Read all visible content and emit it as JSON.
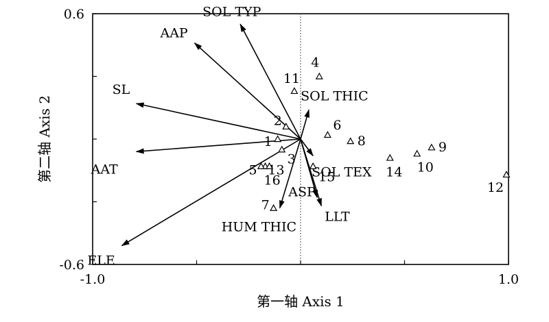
{
  "chart_data": {
    "type": "scatter",
    "subtype": "ordination-biplot",
    "title": "",
    "xlabel": "第一轴 Axis 1",
    "ylabel": "第二轴 Axis 2",
    "xlim": [
      -1.0,
      1.0
    ],
    "ylim": [
      -0.6,
      0.6
    ],
    "x_ticks": [
      -1.0,
      1.0
    ],
    "x_tick_labels": [
      "-1.0",
      "1.0"
    ],
    "y_ticks": [
      -0.6,
      0.6
    ],
    "y_tick_labels": [
      "-0.6",
      "0.6"
    ],
    "grid": false,
    "reference_line": {
      "axis": "x",
      "value": 0
    },
    "origin": [
      0.0,
      0.0
    ],
    "arrows": [
      {
        "label": "SOL TYP",
        "x": -0.29,
        "y": 0.55
      },
      {
        "label": "AAP",
        "x": -0.51,
        "y": 0.46
      },
      {
        "label": "SL",
        "x": -0.79,
        "y": 0.17
      },
      {
        "label": "AAT",
        "x": -0.79,
        "y": -0.06
      },
      {
        "label": "ELE",
        "x": -0.86,
        "y": -0.51
      },
      {
        "label": "SOL THIC",
        "x": 0.04,
        "y": 0.14
      },
      {
        "label": "HUM THIC",
        "x": -0.1,
        "y": -0.33
      },
      {
        "label": "ASP",
        "x": 0.08,
        "y": -0.28
      },
      {
        "label": "LLT",
        "x": 0.1,
        "y": -0.32
      },
      {
        "label": "SOL TEX",
        "x": 0.06,
        "y": -0.08
      }
    ],
    "points": [
      {
        "label": "1",
        "x": -0.11,
        "y": 0.0
      },
      {
        "label": "2",
        "x": -0.07,
        "y": 0.06
      },
      {
        "label": "3",
        "x": -0.09,
        "y": -0.05
      },
      {
        "label": "4",
        "x": 0.09,
        "y": 0.3
      },
      {
        "label": "5",
        "x": -0.17,
        "y": -0.13
      },
      {
        "label": "6",
        "x": 0.13,
        "y": 0.02
      },
      {
        "label": "7",
        "x": -0.13,
        "y": -0.33
      },
      {
        "label": "8",
        "x": 0.24,
        "y": -0.01
      },
      {
        "label": "9",
        "x": 0.63,
        "y": -0.04
      },
      {
        "label": "10",
        "x": 0.56,
        "y": -0.07
      },
      {
        "label": "11",
        "x": -0.03,
        "y": 0.23
      },
      {
        "label": "12",
        "x": 0.99,
        "y": -0.17
      },
      {
        "label": "13",
        "x": -0.19,
        "y": -0.13
      },
      {
        "label": "14",
        "x": 0.43,
        "y": -0.09
      },
      {
        "label": "15",
        "x": 0.06,
        "y": -0.13
      },
      {
        "label": "16",
        "x": -0.15,
        "y": -0.13
      }
    ]
  }
}
